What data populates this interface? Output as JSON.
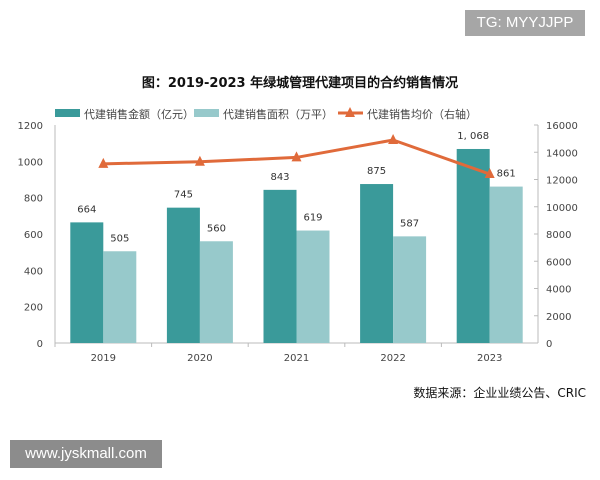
{
  "watermarks": {
    "top": "TG: MYYJJPP",
    "bottom": "www.jyskmall.com"
  },
  "source": "数据来源：企业业绩公告、CRIC",
  "colors": {
    "amount": "#3a9a9a",
    "area": "#97c9cb",
    "price": "#e06a3a"
  },
  "chart_data": {
    "type": "bar+line",
    "title": "图：2019-2023 年绿城管理代建项目的合约销售情况",
    "categories": [
      "2019",
      "2020",
      "2021",
      "2022",
      "2023"
    ],
    "series": [
      {
        "name": "代建销售金额（亿元）",
        "type": "bar",
        "axis": "left",
        "values": [
          664,
          745,
          843,
          875,
          1068
        ],
        "labels": [
          "664",
          "745",
          "843",
          "875",
          "1, 068"
        ]
      },
      {
        "name": "代建销售面积（万平）",
        "type": "bar",
        "axis": "left",
        "values": [
          505,
          560,
          619,
          587,
          861
        ],
        "labels": [
          "505",
          "560",
          "619",
          "587",
          "861"
        ]
      },
      {
        "name": "代建销售均价（右轴）",
        "type": "line",
        "axis": "right",
        "marker": "triangle",
        "values": [
          13150,
          13300,
          13620,
          14900,
          12400
        ]
      }
    ],
    "left_axis": {
      "range": [
        0,
        1200
      ],
      "ticks": [
        "0",
        "200",
        "400",
        "600",
        "800",
        "1000",
        "1200"
      ]
    },
    "right_axis": {
      "range": [
        0,
        16000
      ],
      "ticks": [
        "0",
        "2000",
        "4000",
        "6000",
        "8000",
        "10000",
        "12000",
        "14000",
        "16000"
      ]
    },
    "legend": "top",
    "grid": false
  }
}
